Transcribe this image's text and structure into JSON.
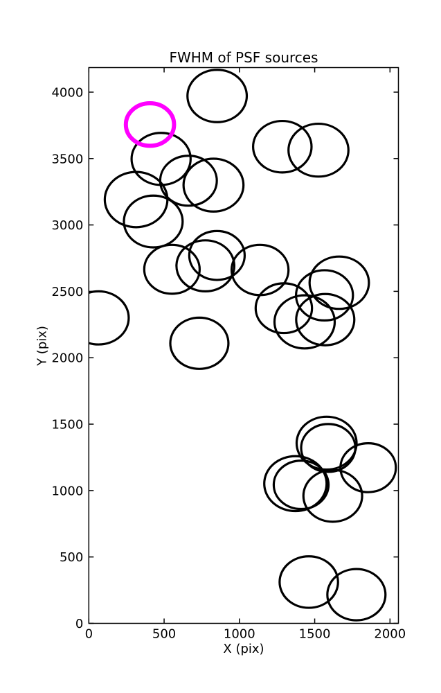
{
  "figure": {
    "title": "FWHM of PSF sources",
    "x_axis_label": "X (pix)",
    "y_axis_label": "Y (pix)"
  },
  "chart_data": {
    "type": "scatter",
    "title": "FWHM of PSF sources",
    "xlabel": "X (pix)",
    "ylabel": "Y (pix)",
    "xlim": [
      0,
      2056
    ],
    "ylim": [
      0,
      4185
    ],
    "xticks": [
      0,
      500,
      1000,
      1500,
      2000
    ],
    "yticks": [
      0,
      500,
      1000,
      1500,
      2000,
      2500,
      3000,
      3500,
      4000
    ],
    "grid": false,
    "legend": "none",
    "axis_color": "#000000",
    "circle_style": {
      "shape": "circle-outline",
      "color": "#000000",
      "linewidth": 3.2
    },
    "highlight_style": {
      "shape": "circle-outline",
      "color": "#FF00FF",
      "linewidth": 6
    },
    "sources": [
      {
        "x": 852,
        "y": 3971,
        "r": 197
      },
      {
        "x": 1285,
        "y": 3589,
        "r": 194
      },
      {
        "x": 1525,
        "y": 3563,
        "r": 199
      },
      {
        "x": 480,
        "y": 3497,
        "r": 196
      },
      {
        "x": 662,
        "y": 3333,
        "r": 188
      },
      {
        "x": 828,
        "y": 3300,
        "r": 199
      },
      {
        "x": 314,
        "y": 3191,
        "r": 208
      },
      {
        "x": 428,
        "y": 3026,
        "r": 195
      },
      {
        "x": 851,
        "y": 2770,
        "r": 184
      },
      {
        "x": 774,
        "y": 2692,
        "r": 192
      },
      {
        "x": 552,
        "y": 2666,
        "r": 184
      },
      {
        "x": 1137,
        "y": 2661,
        "r": 189
      },
      {
        "x": 1663,
        "y": 2565,
        "r": 197
      },
      {
        "x": 1565,
        "y": 2470,
        "r": 189
      },
      {
        "x": 1295,
        "y": 2373,
        "r": 187
      },
      {
        "x": 65,
        "y": 2300,
        "r": 200
      },
      {
        "x": 1570,
        "y": 2287,
        "r": 193
      },
      {
        "x": 1433,
        "y": 2270,
        "r": 200
      },
      {
        "x": 734,
        "y": 2109,
        "r": 193
      },
      {
        "x": 1579,
        "y": 1357,
        "r": 199
      },
      {
        "x": 1590,
        "y": 1321,
        "r": 180
      },
      {
        "x": 1855,
        "y": 1172,
        "r": 184
      },
      {
        "x": 1372,
        "y": 1052,
        "r": 207
      },
      {
        "x": 1410,
        "y": 1043,
        "r": 182
      },
      {
        "x": 1620,
        "y": 960,
        "r": 195
      },
      {
        "x": 1461,
        "y": 311,
        "r": 194
      },
      {
        "x": 1777,
        "y": 216,
        "r": 193
      }
    ],
    "highlighted_source": {
      "x": 406,
      "y": 3756,
      "r": 160
    }
  }
}
